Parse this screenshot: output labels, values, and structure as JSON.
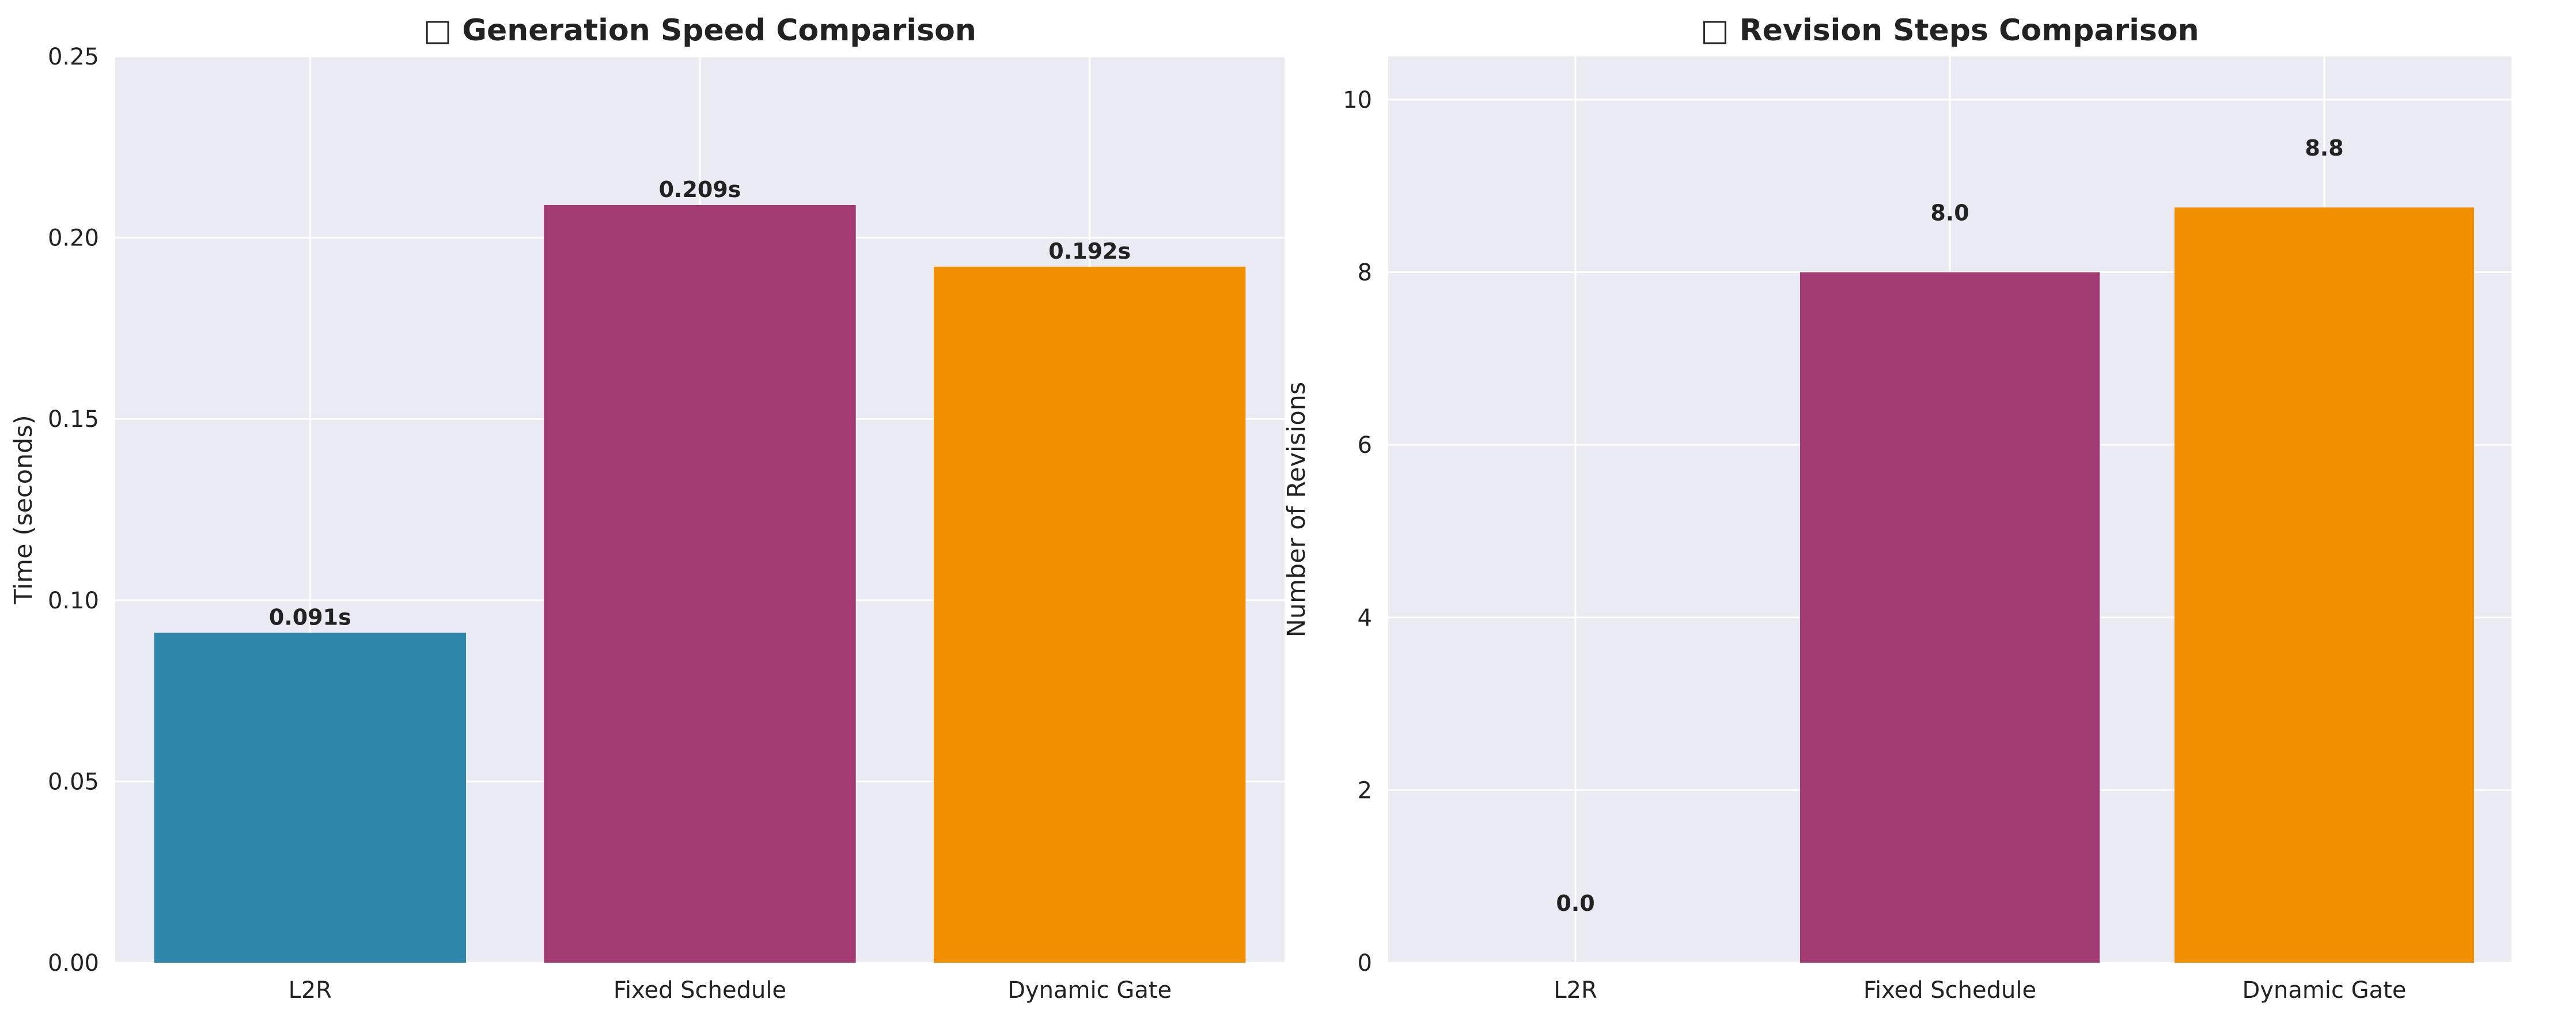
{
  "chart_data": [
    {
      "type": "bar",
      "title": "□ Generation Speed Comparison",
      "xlabel": "",
      "ylabel": "Time (seconds)",
      "categories": [
        "L2R",
        "Fixed Schedule",
        "Dynamic Gate"
      ],
      "values": [
        0.091,
        0.209,
        0.192
      ],
      "value_labels": [
        "0.091s",
        "0.209s",
        "0.192s"
      ],
      "colors": [
        "#2E86AB",
        "#A23B72",
        "#F18F01"
      ],
      "ylim": [
        0,
        0.25
      ],
      "yticks": [
        0.0,
        0.05,
        0.1,
        0.15,
        0.2,
        0.25
      ],
      "ytick_labels": [
        "0.00",
        "0.05",
        "0.10",
        "0.15",
        "0.20",
        "0.25"
      ],
      "grid": true
    },
    {
      "type": "bar",
      "title": "□ Revision Steps Comparison",
      "xlabel": "",
      "ylabel": "Number of Revisions",
      "categories": [
        "L2R",
        "Fixed Schedule",
        "Dynamic Gate"
      ],
      "values": [
        0.0,
        8.0,
        8.75
      ],
      "value_labels": [
        "0.0",
        "8.0",
        "8.8"
      ],
      "colors": [
        "#2E86AB",
        "#A23B72",
        "#F18F01"
      ],
      "ylim": [
        0,
        10.5
      ],
      "yticks": [
        0,
        2,
        4,
        6,
        8,
        10
      ],
      "ytick_labels": [
        "0",
        "2",
        "4",
        "6",
        "8",
        "10"
      ],
      "grid": true
    }
  ]
}
